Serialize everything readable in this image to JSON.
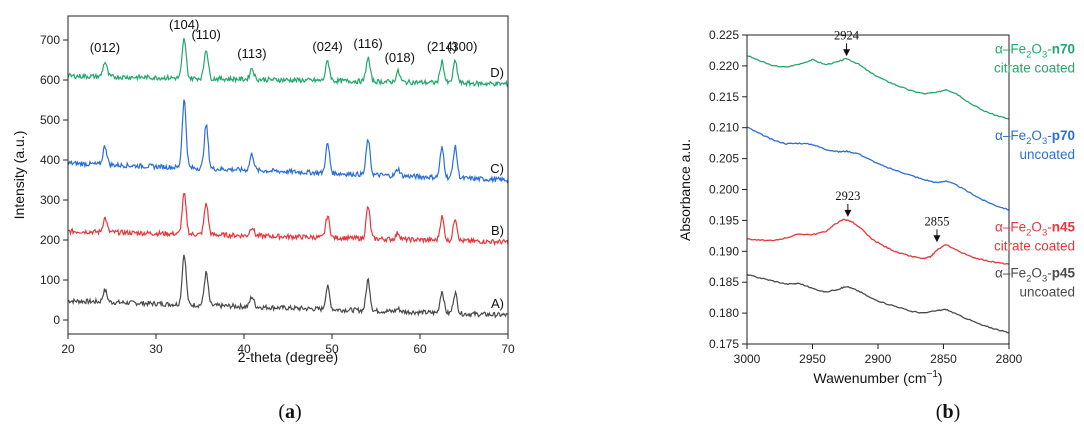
{
  "chart_data": [
    {
      "type": "line",
      "panel_label": "(a)",
      "xlabel": "2-theta (degree)",
      "ylabel": "Intensity (a.u.)",
      "xlim": [
        20,
        70
      ],
      "ylim": [
        -35,
        760
      ],
      "xticks": [
        20,
        30,
        40,
        50,
        60,
        70
      ],
      "yticks": [
        0,
        100,
        200,
        300,
        400,
        500,
        600,
        700
      ],
      "grid": false,
      "series": [
        {
          "name": "A)",
          "color": "#4a4a4a",
          "baseline": 48,
          "baseline_end": 12,
          "noise": 6,
          "peaks": [
            [
              24.2,
              75
            ],
            [
              33.2,
              165
            ],
            [
              35.7,
              118
            ],
            [
              40.9,
              58
            ],
            [
              49.5,
              83
            ],
            [
              54.1,
              101
            ],
            [
              57.5,
              28
            ],
            [
              62.5,
              72
            ],
            [
              64.0,
              68
            ]
          ]
        },
        {
          "name": "B)",
          "color": "#e8363b",
          "baseline": 222,
          "baseline_end": 195,
          "noise": 6,
          "peaks": [
            [
              24.2,
              255
            ],
            [
              33.2,
              315
            ],
            [
              35.7,
              292
            ],
            [
              40.9,
              233
            ],
            [
              49.5,
              260
            ],
            [
              54.1,
              283
            ],
            [
              57.5,
              218
            ],
            [
              62.5,
              258
            ],
            [
              64.0,
              255
            ]
          ]
        },
        {
          "name": "C)",
          "color": "#2b6fd6",
          "baseline": 392,
          "baseline_end": 350,
          "noise": 6,
          "peaks": [
            [
              24.2,
              435
            ],
            [
              33.2,
              550
            ],
            [
              35.7,
              487
            ],
            [
              40.9,
              415
            ],
            [
              49.5,
              440
            ],
            [
              54.1,
              451
            ],
            [
              57.5,
              378
            ],
            [
              62.5,
              430
            ],
            [
              64.0,
              433
            ]
          ]
        },
        {
          "name": "D)",
          "color": "#22a86a",
          "baseline": 610,
          "baseline_end": 590,
          "noise": 6,
          "peaks": [
            [
              24.2,
              645
            ],
            [
              33.2,
              702
            ],
            [
              35.7,
              678
            ],
            [
              40.9,
              630
            ],
            [
              49.5,
              647
            ],
            [
              54.1,
              655
            ],
            [
              57.5,
              621
            ],
            [
              62.5,
              647
            ],
            [
              64.0,
              647
            ]
          ]
        }
      ],
      "annotations": [
        {
          "text": "(012)",
          "x": 24.2,
          "y": 670
        },
        {
          "text": "(104)",
          "x": 33.2,
          "y": 728
        },
        {
          "text": "(110)",
          "x": 35.7,
          "y": 703
        },
        {
          "text": "(113)",
          "x": 40.9,
          "y": 655
        },
        {
          "text": "(024)",
          "x": 49.5,
          "y": 672
        },
        {
          "text": "(116)",
          "x": 54.1,
          "y": 680
        },
        {
          "text": "(018)",
          "x": 57.7,
          "y": 645
        },
        {
          "text": "(214)",
          "x": 62.5,
          "y": 672
        },
        {
          "text": "(300)",
          "x": 64.8,
          "y": 672
        }
      ]
    },
    {
      "type": "line",
      "panel_label": "(b)",
      "xlabel_main": "Wawenumber (cm",
      "xlabel_sup": "−1",
      "xlabel_end": ")",
      "ylabel": "Absorbance a.u.",
      "xlim": [
        3000,
        2800
      ],
      "x_reversed": true,
      "ylim": [
        0.175,
        0.225
      ],
      "xticks": [
        3000,
        2950,
        2900,
        2850,
        2800
      ],
      "yticks": [
        0.175,
        0.18,
        0.185,
        0.19,
        0.195,
        0.2,
        0.205,
        0.21,
        0.215,
        0.22,
        0.225
      ],
      "ytick_labels": [
        "0.175",
        "0.180",
        "0.185",
        "0.190",
        "0.195",
        "0.200",
        "0.205",
        "0.210",
        "0.215",
        "0.220",
        "0.225"
      ],
      "grid": false,
      "series": [
        {
          "legend_prefix": "α–Fe",
          "legend_sub1": "2",
          "legend_mid": "O",
          "legend_sub2": "3",
          "legend_dash": "-",
          "legend_bold": "n70",
          "legend_second": "citrate coated",
          "color": "#22a86a",
          "x": [
            3000,
            2990,
            2980,
            2970,
            2960,
            2950,
            2940,
            2930,
            2924,
            2915,
            2905,
            2895,
            2885,
            2875,
            2865,
            2855,
            2848,
            2840,
            2830,
            2820,
            2810,
            2800
          ],
          "y": [
            0.2217,
            0.2208,
            0.22,
            0.2198,
            0.2203,
            0.221,
            0.2202,
            0.2207,
            0.2212,
            0.2203,
            0.2188,
            0.2177,
            0.2168,
            0.216,
            0.2155,
            0.2157,
            0.2162,
            0.2155,
            0.214,
            0.2128,
            0.212,
            0.2114
          ]
        },
        {
          "legend_prefix": "α–Fe",
          "legend_sub1": "2",
          "legend_mid": "O",
          "legend_sub2": "3",
          "legend_dash": "-",
          "legend_bold": "p70",
          "legend_second": "uncoated",
          "color": "#2b6fd6",
          "x": [
            3000,
            2990,
            2980,
            2970,
            2960,
            2950,
            2940,
            2930,
            2924,
            2915,
            2905,
            2895,
            2885,
            2875,
            2865,
            2855,
            2848,
            2840,
            2830,
            2820,
            2810,
            2800
          ],
          "y": [
            0.2101,
            0.209,
            0.208,
            0.2074,
            0.2075,
            0.2073,
            0.2065,
            0.2061,
            0.2062,
            0.2058,
            0.2047,
            0.2037,
            0.203,
            0.2023,
            0.2016,
            0.2011,
            0.2014,
            0.2007,
            0.1995,
            0.1983,
            0.1974,
            0.1967
          ]
        },
        {
          "legend_prefix": "α–Fe",
          "legend_sub1": "2",
          "legend_mid": "O",
          "legend_sub2": "3",
          "legend_dash": "-",
          "legend_bold": "n45",
          "legend_second": "citrate coated",
          "color": "#e8363b",
          "x": [
            3000,
            2990,
            2980,
            2970,
            2960,
            2950,
            2940,
            2932,
            2926,
            2920,
            2912,
            2905,
            2895,
            2885,
            2875,
            2865,
            2860,
            2855,
            2848,
            2840,
            2830,
            2820,
            2810,
            2800
          ],
          "y": [
            0.192,
            0.1918,
            0.1917,
            0.1922,
            0.1928,
            0.1927,
            0.1932,
            0.1945,
            0.1952,
            0.1948,
            0.1935,
            0.192,
            0.1908,
            0.1898,
            0.1892,
            0.1888,
            0.1891,
            0.1902,
            0.1911,
            0.1902,
            0.1892,
            0.1886,
            0.1882,
            0.1879
          ]
        },
        {
          "legend_prefix": "α–Fe",
          "legend_sub1": "2",
          "legend_mid": "O",
          "legend_sub2": "3",
          "legend_dash": "-",
          "legend_bold": "p45",
          "legend_second": "uncoated",
          "color": "#4a4a4a",
          "x": [
            3000,
            2990,
            2980,
            2970,
            2960,
            2950,
            2940,
            2930,
            2924,
            2915,
            2905,
            2895,
            2885,
            2875,
            2865,
            2855,
            2848,
            2840,
            2830,
            2820,
            2810,
            2800
          ],
          "y": [
            0.1862,
            0.1857,
            0.1852,
            0.1847,
            0.1848,
            0.184,
            0.1834,
            0.1839,
            0.1843,
            0.1836,
            0.1824,
            0.1816,
            0.181,
            0.1803,
            0.18,
            0.1804,
            0.1806,
            0.1798,
            0.1789,
            0.178,
            0.1774,
            0.1768
          ]
        }
      ],
      "annotations": [
        {
          "text": "2924",
          "x": 2924,
          "y": 0.2214,
          "label_y": 0.2243
        },
        {
          "text": "2923",
          "x": 2923,
          "y": 0.1954,
          "label_y": 0.1983
        },
        {
          "text": "2855",
          "x": 2855,
          "y": 0.1913,
          "label_y": 0.1942
        }
      ]
    }
  ]
}
